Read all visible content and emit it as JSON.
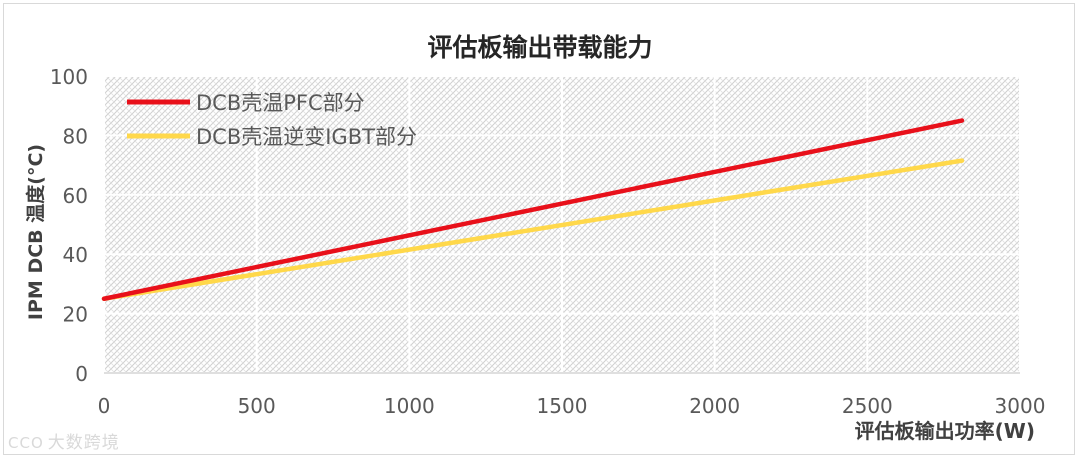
{
  "chart_data": {
    "type": "line",
    "title": "评估板输出带载能力",
    "xlabel": "评估板输出功率(W)",
    "ylabel": "IPM DCB 温度(°C)",
    "xlim": [
      0,
      3000
    ],
    "ylim": [
      0,
      100
    ],
    "xticks": [
      0,
      500,
      1000,
      1500,
      2000,
      2500,
      3000
    ],
    "yticks": [
      0,
      20,
      40,
      60,
      80,
      100
    ],
    "grid": true,
    "legend": "top-left",
    "series": [
      {
        "name": "DCB壳温PFC部分",
        "color": "#e8101a",
        "x": [
          0,
          2810
        ],
        "values": [
          25,
          85
        ]
      },
      {
        "name": "DCB壳温逆变IGBT部分",
        "color": "#ffd84a",
        "x": [
          0,
          2810
        ],
        "values": [
          25,
          71.5
        ]
      }
    ]
  },
  "watermark": {
    "logo": "CCO",
    "text": "大数跨境"
  }
}
